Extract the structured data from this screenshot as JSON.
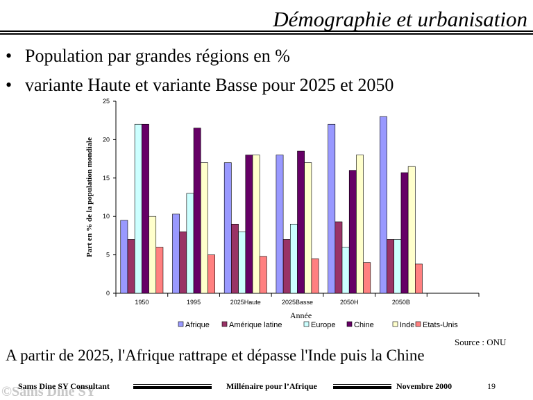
{
  "slide": {
    "title": "Démographie et urbanisation",
    "bullets": [
      "Population par grandes régions en %",
      "variante Haute et variante Basse pour 2025 et 2050"
    ],
    "source": "Source : ONU",
    "conclusion": "A partir de 2025, l'Afrique rattrape et dépasse l'Inde puis la Chine"
  },
  "footer": {
    "author": "Sams Dine SY Consultant",
    "center": "Millénaire pour l’Afrique",
    "date": "Novembre 2000",
    "page": "19",
    "watermark": "©Sams Dine SY"
  },
  "chart_data": {
    "type": "bar",
    "xlabel": "Année",
    "ylabel": "Part en % de la population mondiale",
    "ylim": [
      0,
      25
    ],
    "yticks": [
      0,
      5,
      10,
      15,
      20,
      25
    ],
    "categories": [
      "1950",
      "1995",
      "2025Haute",
      "2025Basse",
      "2050H",
      "2050B"
    ],
    "empty_trailing_slots": 1,
    "legend_position": "bottom",
    "series": [
      {
        "name": "Afrique",
        "color": "#9999ff",
        "values": [
          9.5,
          10.3,
          17,
          18,
          22,
          23
        ]
      },
      {
        "name": "Amérique latine",
        "color": "#993366",
        "values": [
          7,
          8,
          9,
          7,
          9.3,
          7
        ]
      },
      {
        "name": "Europe",
        "color": "#ccffff",
        "values": [
          22,
          13,
          8,
          9,
          6,
          7
        ]
      },
      {
        "name": "Chine",
        "color": "#660066",
        "values": [
          22,
          21.5,
          18,
          18.5,
          16,
          15.7
        ]
      },
      {
        "name": "Inde",
        "color": "#ffffcc",
        "values": [
          10,
          17,
          18,
          17,
          18,
          16.5
        ]
      },
      {
        "name": "Etats-Unis",
        "color": "#ff8080",
        "values": [
          6,
          5,
          4.8,
          4.5,
          4,
          3.8
        ]
      }
    ]
  }
}
